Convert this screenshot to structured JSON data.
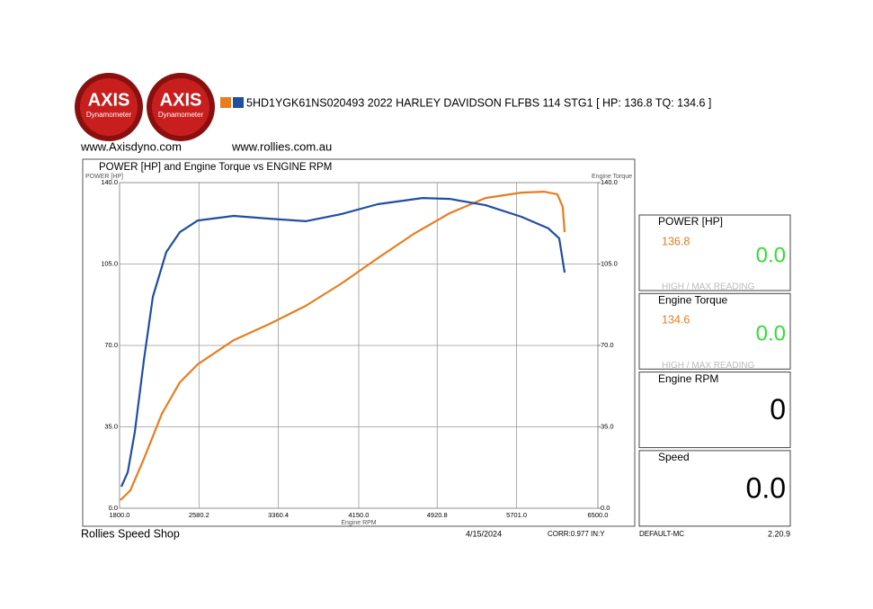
{
  "header": {
    "logo_text": "AXIS",
    "logo_sub": "Dynamometer",
    "run_title": "5HD1YGK61NS020493 2022 HARLEY DAVIDSON FLFBS 114 STG1 [ HP: 136.8 TQ: 134.6 ]",
    "site1": "www.Axisdyno.com",
    "site2": "www.rollies.com.au"
  },
  "chart_data": {
    "type": "line",
    "title": "POWER [HP] and Engine Torque vs ENGINE RPM",
    "y_label": "POWER [HP]",
    "y2_label": "Engine Torque",
    "x_label": "Engine RPM",
    "xlim": [
      1800,
      6500
    ],
    "xticks": [
      {
        "value": 1800,
        "label": "1800.0"
      },
      2580.2,
      3360.4,
      {
        "value": 4150,
        "label": "4150.0"
      },
      4920.8,
      {
        "value": 5701,
        "label": "5701.0"
      },
      {
        "value": 6500,
        "label": "6500.0"
      }
    ],
    "ylim": [
      0,
      140
    ],
    "yticks": [
      {
        "value": 0,
        "label": "0.0"
      },
      {
        "value": 35,
        "label": "35.0"
      },
      {
        "value": 70,
        "label": "70.0"
      },
      {
        "value": 105,
        "label": "105.0"
      },
      {
        "value": 140,
        "label": "140.0"
      }
    ],
    "y2lim": [
      0,
      140
    ],
    "y2ticks": [
      {
        "value": 0,
        "label": "0.0"
      },
      {
        "value": 35,
        "label": "35.0"
      },
      {
        "value": 70,
        "label": "70.0"
      },
      {
        "value": 105,
        "label": "105.0"
      },
      {
        "value": 140,
        "label": "140.0"
      }
    ],
    "grid": true,
    "series": [
      {
        "color": "#e87d1e",
        "x": [
          1809,
          1906,
          2039,
          2215,
          2392,
          2569,
          2922,
          3275,
          3629,
          3982,
          4336,
          4689,
          5042,
          5396,
          5749,
          5970,
          6102,
          6155,
          6173
        ],
        "values": [
          3.5,
          7.7,
          21.3,
          40.6,
          54.1,
          61.9,
          72.3,
          79.3,
          87.0,
          96.7,
          107.5,
          117.9,
          126.8,
          133.4,
          135.7,
          136.1,
          135.0,
          129.5,
          118.7
        ]
      },
      {
        "color": "#1f4fa0",
        "axis": "y2",
        "x": [
          1818,
          1880,
          1950,
          2039,
          2127,
          2259,
          2392,
          2569,
          2922,
          3275,
          3629,
          3982,
          4336,
          4777,
          5042,
          5396,
          5749,
          6014,
          6120,
          6173
        ],
        "values": [
          9.3,
          15.5,
          32.9,
          63.8,
          90.9,
          110.2,
          118.7,
          123.7,
          125.7,
          124.5,
          123.4,
          126.5,
          130.7,
          133.4,
          133.0,
          130.3,
          125.3,
          120.3,
          116.0,
          101.3
        ]
      }
    ]
  },
  "panels": [
    {
      "label": "POWER [HP]",
      "max": "136.8",
      "value": "0.0",
      "note": "HIGH / MAX READING"
    },
    {
      "label": "Engine Torque",
      "max": "134.6",
      "value": "0.0",
      "note": "HIGH / MAX READING"
    },
    {
      "label": "Engine RPM",
      "value": "0"
    },
    {
      "label": "Speed",
      "value": "0.0"
    }
  ],
  "footer": {
    "shop": "Rollies Speed Shop",
    "date": "4/15/2024",
    "corr": "CORR:0.977 IN:Y",
    "profile": "DEFAULT-MC",
    "version": "2.20.9"
  }
}
